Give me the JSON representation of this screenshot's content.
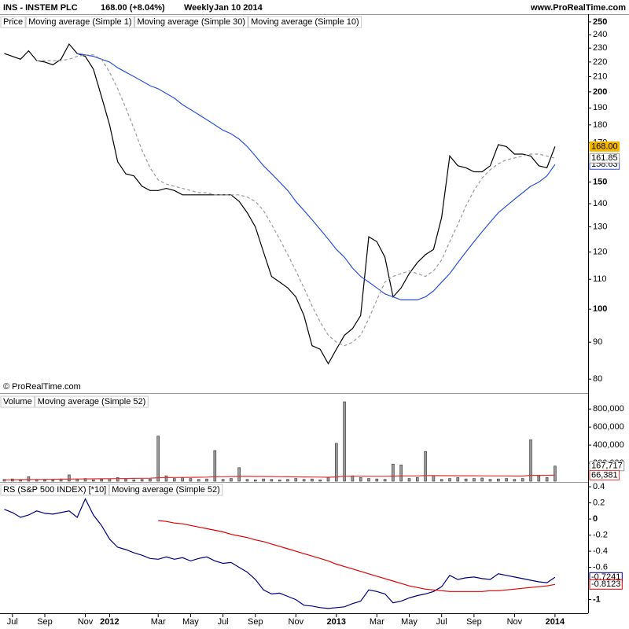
{
  "header": {
    "symbol": "INS - INSTEM PLC",
    "quote": "168.00 (+8.04%)",
    "period": "Weekly",
    "date": "Jan 10 2014",
    "site": "www.ProRealTime.com"
  },
  "chart_data": [
    {
      "type": "line",
      "title": "Price",
      "annotation": "© ProRealTime.com",
      "log_scale": true,
      "ylim": [
        76.5,
        255
      ],
      "yticks": [
        250,
        240,
        230,
        220,
        210,
        200,
        190,
        180,
        170,
        150,
        140,
        130,
        120,
        110,
        100,
        90,
        80
      ],
      "series": [
        {
          "name": "Moving average (Simple 1)",
          "color": "#000000",
          "values": [
            226,
            224,
            222,
            228,
            221,
            220,
            218,
            222,
            233,
            226,
            224,
            215,
            197,
            180,
            160,
            154,
            153,
            148,
            146,
            146,
            147,
            146,
            144,
            144,
            144,
            144,
            144,
            144,
            144,
            141,
            136,
            130,
            120,
            111,
            109,
            107,
            104,
            98,
            89,
            88,
            84,
            88,
            92,
            94,
            98,
            126,
            124,
            118,
            104,
            107,
            112,
            116,
            119,
            121,
            134,
            163,
            158,
            157,
            155,
            155,
            158,
            169,
            168,
            164,
            164,
            163,
            158,
            157,
            168
          ],
          "value_labels": [
            null,
            null,
            null,
            null,
            null,
            null,
            null,
            null,
            null,
            null,
            null,
            null,
            null,
            null,
            null,
            null,
            null,
            null,
            null,
            null,
            null,
            null,
            null,
            null,
            null,
            null,
            null,
            null,
            null,
            null,
            null,
            null,
            null,
            null,
            null,
            null,
            null,
            null,
            null,
            null,
            null,
            null,
            null,
            null,
            null,
            null,
            null,
            null,
            null,
            null,
            null,
            null,
            null,
            null,
            null,
            null,
            null,
            null,
            null,
            null,
            null,
            null,
            null,
            null,
            null,
            null,
            null,
            null,
            "168.00"
          ]
        },
        {
          "name": "Moving average (Simple 30)",
          "color": "#2a4fe0",
          "values": [
            null,
            null,
            null,
            null,
            null,
            null,
            null,
            null,
            null,
            226,
            225,
            224,
            222,
            220,
            216,
            213,
            210,
            207,
            204,
            202,
            199,
            196,
            192,
            189,
            186,
            183,
            180,
            177,
            175,
            172,
            168,
            163,
            158,
            154,
            150,
            146,
            141,
            137,
            133,
            129,
            125,
            121,
            118,
            114,
            111,
            109,
            107,
            105,
            104,
            103,
            103,
            103,
            104,
            106,
            109,
            112,
            116,
            120,
            124,
            128,
            132,
            136,
            139,
            142,
            145,
            148,
            150,
            153,
            158.63
          ]
        },
        {
          "name": "Moving average (Simple 10)",
          "color": "#999999",
          "dash": true,
          "values": [
            null,
            null,
            null,
            null,
            221,
            221,
            221,
            221,
            222,
            224,
            225,
            225,
            222,
            213,
            202,
            190,
            178,
            166,
            157,
            151,
            149,
            148,
            147,
            146,
            145,
            145,
            144,
            144,
            144,
            144,
            143,
            141,
            137,
            131,
            125,
            119,
            113,
            107,
            101,
            96,
            92,
            90,
            89,
            90,
            92,
            97,
            103,
            109,
            111,
            112,
            113,
            112,
            111,
            113,
            117,
            124,
            131,
            139,
            146,
            152,
            156,
            159,
            161,
            162,
            163,
            164,
            164,
            163,
            161.85
          ]
        }
      ]
    },
    {
      "type": "bar",
      "ylim": [
        0,
        950000
      ],
      "yticks": [
        {
          "value": 800000,
          "label": "800,000"
        },
        {
          "value": 600000,
          "label": "600,000"
        },
        {
          "value": 400000,
          "label": "400,000"
        },
        {
          "value": 200000,
          "label": "200,000"
        }
      ],
      "series": [
        {
          "name": "Volume",
          "type": "bar",
          "color": "#9a9a9a",
          "values": [
            20000,
            25000,
            15000,
            50000,
            20000,
            15000,
            10000,
            25000,
            70000,
            20000,
            30000,
            15000,
            20000,
            25000,
            40000,
            20000,
            15000,
            20000,
            25000,
            500000,
            60000,
            30000,
            40000,
            30000,
            20000,
            25000,
            340000,
            20000,
            30000,
            150000,
            20000,
            15000,
            25000,
            20000,
            15000,
            20000,
            30000,
            20000,
            25000,
            15000,
            40000,
            420000,
            880000,
            60000,
            40000,
            30000,
            25000,
            20000,
            190000,
            180000,
            30000,
            40000,
            330000,
            60000,
            20000,
            30000,
            40000,
            25000,
            30000,
            35000,
            20000,
            25000,
            30000,
            20000,
            30000,
            460000,
            60000,
            40000,
            167717
          ],
          "value_labels": [
            null,
            null,
            null,
            null,
            null,
            null,
            null,
            null,
            null,
            null,
            null,
            null,
            null,
            null,
            null,
            null,
            null,
            null,
            null,
            null,
            null,
            null,
            null,
            null,
            null,
            null,
            null,
            null,
            null,
            null,
            null,
            null,
            null,
            null,
            null,
            null,
            null,
            null,
            null,
            null,
            null,
            null,
            null,
            null,
            null,
            null,
            null,
            null,
            null,
            null,
            null,
            null,
            null,
            null,
            null,
            null,
            null,
            null,
            null,
            null,
            null,
            null,
            null,
            null,
            null,
            null,
            null,
            null,
            "167,717"
          ]
        },
        {
          "name": "Moving average (Simple 52)",
          "type": "line",
          "color": "#e03030",
          "values": [
            15000,
            16000,
            17000,
            18000,
            19000,
            20000,
            21000,
            22000,
            23000,
            24000,
            25000,
            26000,
            27000,
            28000,
            29000,
            30000,
            31000,
            32000,
            33000,
            38000,
            40000,
            41000,
            42000,
            43000,
            44000,
            45000,
            50000,
            50000,
            51000,
            53000,
            53000,
            52000,
            52000,
            51000,
            50000,
            49000,
            48000,
            47000,
            46000,
            45000,
            44000,
            47000,
            55000,
            55000,
            55000,
            54000,
            54000,
            54000,
            56000,
            58000,
            58000,
            58000,
            62000,
            62000,
            61000,
            61000,
            60000,
            60000,
            60000,
            59000,
            58000,
            58000,
            58000,
            57000,
            57000,
            65000,
            65000,
            65000,
            66381
          ],
          "value_labels": [
            null,
            null,
            null,
            null,
            null,
            null,
            null,
            null,
            null,
            null,
            null,
            null,
            null,
            null,
            null,
            null,
            null,
            null,
            null,
            null,
            null,
            null,
            null,
            null,
            null,
            null,
            null,
            null,
            null,
            null,
            null,
            null,
            null,
            null,
            null,
            null,
            null,
            null,
            null,
            null,
            null,
            null,
            null,
            null,
            null,
            null,
            null,
            null,
            null,
            null,
            null,
            null,
            null,
            null,
            null,
            null,
            null,
            null,
            null,
            null,
            null,
            null,
            null,
            null,
            null,
            null,
            null,
            null,
            "66,381"
          ]
        }
      ]
    },
    {
      "type": "line",
      "categories": [
        null,
        "Jul",
        null,
        null,
        null,
        "Sep",
        null,
        null,
        null,
        null,
        "Nov",
        null,
        null,
        "2012",
        null,
        null,
        null,
        null,
        null,
        "Mar",
        null,
        null,
        null,
        "May",
        null,
        null,
        null,
        "Jul",
        null,
        null,
        null,
        "Sep",
        null,
        null,
        null,
        null,
        "Nov",
        null,
        null,
        null,
        null,
        "2013",
        null,
        null,
        null,
        null,
        "Mar",
        null,
        null,
        null,
        "May",
        null,
        null,
        null,
        "Jul",
        null,
        null,
        null,
        "Sep",
        null,
        null,
        null,
        null,
        "Nov",
        null,
        null,
        null,
        null,
        "2014"
      ],
      "ylim": [
        -1.17,
        0.44
      ],
      "yticks": [
        0.4,
        0.2,
        0,
        -0.2,
        -0.4,
        -0.6,
        -1
      ],
      "series": [
        {
          "name": "RS (S&P 500 INDEX) [*10]",
          "color": "#000080",
          "values": [
            0.12,
            0.08,
            0.02,
            0.05,
            0.1,
            0.07,
            0.06,
            0.08,
            0.1,
            0.02,
            0.25,
            0.05,
            -0.08,
            -0.25,
            -0.35,
            -0.38,
            -0.42,
            -0.45,
            -0.49,
            -0.5,
            -0.47,
            -0.5,
            -0.48,
            -0.52,
            -0.49,
            -0.47,
            -0.52,
            -0.55,
            -0.54,
            -0.6,
            -0.66,
            -0.75,
            -0.88,
            -0.93,
            -0.92,
            -0.96,
            -1.0,
            -1.07,
            -1.08,
            -1.1,
            -1.11,
            -1.1,
            -1.09,
            -1.05,
            -1.02,
            -0.88,
            -0.9,
            -0.93,
            -1.04,
            -1.02,
            -0.98,
            -0.95,
            -0.93,
            -0.9,
            -0.84,
            -0.7,
            -0.75,
            -0.73,
            -0.72,
            -0.74,
            -0.75,
            -0.68,
            -0.7,
            -0.72,
            -0.74,
            -0.76,
            -0.78,
            -0.79,
            -0.7241
          ]
        },
        {
          "name": "Moving average (Simple 52)",
          "color": "#e00000",
          "values": [
            null,
            null,
            null,
            null,
            null,
            null,
            null,
            null,
            null,
            null,
            null,
            null,
            null,
            null,
            null,
            null,
            null,
            null,
            null,
            -0.02,
            -0.03,
            -0.05,
            -0.06,
            -0.08,
            -0.1,
            -0.12,
            -0.14,
            -0.16,
            -0.19,
            -0.21,
            -0.23,
            -0.26,
            -0.28,
            -0.31,
            -0.34,
            -0.37,
            -0.4,
            -0.43,
            -0.46,
            -0.49,
            -0.52,
            -0.56,
            -0.59,
            -0.62,
            -0.65,
            -0.68,
            -0.71,
            -0.74,
            -0.77,
            -0.8,
            -0.83,
            -0.85,
            -0.87,
            -0.88,
            -0.89,
            -0.9,
            -0.9,
            -0.9,
            -0.9,
            -0.9,
            -0.89,
            -0.89,
            -0.88,
            -0.87,
            -0.86,
            -0.85,
            -0.84,
            -0.83,
            -0.8123
          ]
        }
      ]
    }
  ]
}
